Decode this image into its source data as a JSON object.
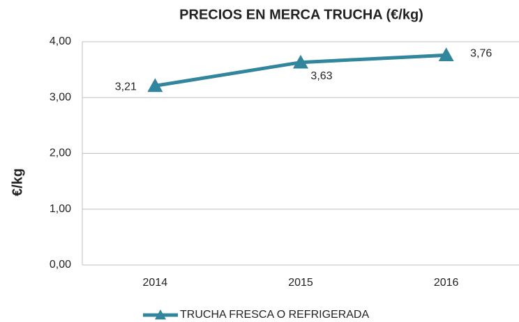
{
  "chart_data": {
    "type": "line",
    "title": "PRECIOS EN MERCA TRUCHA (€/kg)",
    "y_label": "€/kg",
    "categories": [
      "2014",
      "2015",
      "2016"
    ],
    "series": [
      {
        "name": "TRUCHA FRESCA O REFRIGERADA",
        "color": "#31859c",
        "values": [
          3.21,
          3.63,
          3.76
        ],
        "value_labels": [
          "3,21",
          "3,63",
          "3,76"
        ]
      }
    ],
    "ylim": [
      0,
      4
    ],
    "yticks": [
      {
        "value": 0,
        "label": "0,00"
      },
      {
        "value": 1,
        "label": "1,00"
      },
      {
        "value": 2,
        "label": "2,00"
      },
      {
        "value": 3,
        "label": "3,00"
      },
      {
        "value": 4,
        "label": "4,00"
      }
    ],
    "grid": true,
    "legend": "bottom"
  }
}
